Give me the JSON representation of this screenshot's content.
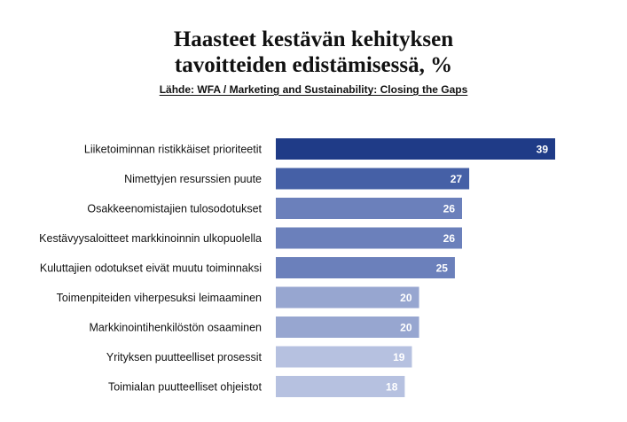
{
  "title_lines": [
    "Haasteet kestävän kehityksen",
    "tavoitteiden edistämisessä, %"
  ],
  "source": "Lähde: WFA / Marketing and Sustainability: Closing the Gaps",
  "colors": {
    "dark": "#1f3b87",
    "mid": "#4560a6",
    "mid_light": "#6b80bb",
    "light": "#97a6d0",
    "lightest": "#b6c1e0"
  },
  "chart_data": {
    "type": "bar",
    "orientation": "horizontal",
    "categories": [
      "Liiketoiminnan ristikkäiset prioriteetit",
      "Nimettyjen resurssien puute",
      "Osakkeenomistajien tulosodotukset",
      "Kestävyysaloitteet markkinoinnin ulkopuolella",
      "Kuluttajien odotukset eivät muutu toiminnaksi",
      "Toimenpiteiden viherpesuksi leimaaminen",
      "Markkinointihenkilöstön osaaminen",
      "Yrityksen puutteelliset prosessit",
      "Toimialan puutteelliset ohjeistot"
    ],
    "values": [
      39,
      27,
      26,
      26,
      25,
      20,
      20,
      19,
      18
    ],
    "bar_colors": [
      "#1f3b87",
      "#4560a6",
      "#6b80bb",
      "#6b80bb",
      "#6b80bb",
      "#97a6d0",
      "#97a6d0",
      "#b6c1e0",
      "#b6c1e0"
    ],
    "value_label_color": "#ffffff"
  }
}
